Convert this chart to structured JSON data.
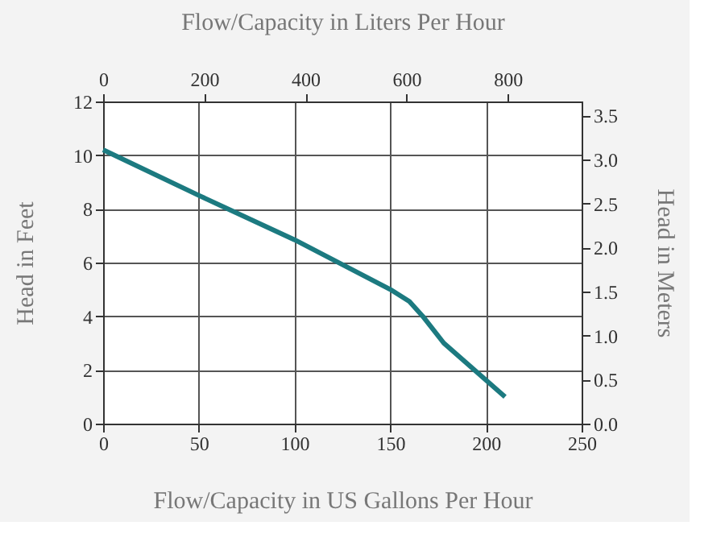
{
  "chart_data": {
    "type": "line",
    "xlabel": "Flow/Capacity in US Gallons Per Hour",
    "ylabel": "Head in Feet",
    "x2label": "Flow/Capacity in Liters Per Hour",
    "y2label": "Head in Meters",
    "x": [
      0,
      50,
      100,
      150,
      160,
      167,
      178,
      210
    ],
    "series": [
      {
        "color": "#1c7a80",
        "values": [
          10.2,
          8.5,
          6.85,
          5.0,
          4.55,
          4.0,
          3.0,
          1.0
        ]
      }
    ],
    "xlim": [
      0,
      250
    ],
    "xticks": [
      0,
      50,
      100,
      150,
      200,
      250
    ],
    "ylim": [
      0,
      12
    ],
    "yticks": [
      0,
      2,
      4,
      6,
      8,
      10,
      12
    ],
    "x2lim": [
      0,
      946.35
    ],
    "x2ticks": [
      0,
      200,
      400,
      600,
      800
    ],
    "y2lim": [
      0,
      3.6576
    ],
    "y2ticks": [
      {
        "value": 0,
        "label": "0.0"
      },
      {
        "value": 0.5,
        "label": "0.5"
      },
      {
        "value": 1,
        "label": "1.0"
      },
      {
        "value": 1.5,
        "label": "1.5"
      },
      {
        "value": 2,
        "label": "2.0"
      },
      {
        "value": 2.5,
        "label": "2.5"
      },
      {
        "value": 3,
        "label": "3.0"
      },
      {
        "value": 3.5,
        "label": "3.5"
      }
    ],
    "grid": true,
    "marker": "none",
    "line_style": "solid"
  }
}
